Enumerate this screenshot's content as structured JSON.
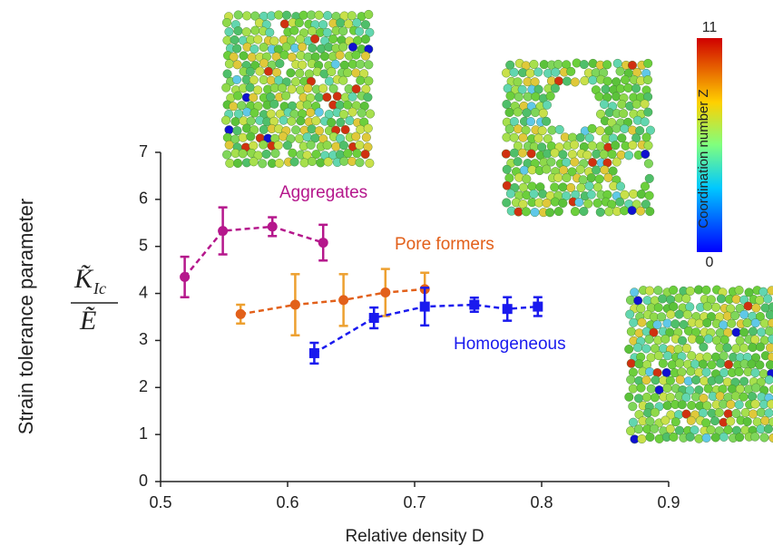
{
  "chart_data": {
    "type": "errorbar-line",
    "y_label": "Strain tolerance parameter",
    "y_formula": {
      "numerator": "K̃",
      "subscript": "Ic",
      "denominator": "Ẽ"
    },
    "x_label": "Relative density D",
    "xlim": [
      0.5,
      0.9
    ],
    "xticks": [
      0.5,
      0.6,
      0.7,
      0.8,
      0.9
    ],
    "ylim": [
      0,
      7
    ],
    "yticks": [
      0,
      1,
      2,
      3,
      4,
      5,
      6,
      7
    ],
    "series": [
      {
        "name": "Aggregates",
        "color": "#b5178c",
        "error_color": "#b5178c",
        "marker": "circle",
        "x": [
          0.519,
          0.549,
          0.588,
          0.628
        ],
        "values": [
          4.35,
          5.33,
          5.42,
          5.08
        ],
        "errors": [
          0.43,
          0.5,
          0.2,
          0.38
        ]
      },
      {
        "name": "Pore formers",
        "color": "#e2601a",
        "error_color": "#eda030",
        "marker": "circle",
        "x": [
          0.563,
          0.606,
          0.644,
          0.677,
          0.708
        ],
        "values": [
          3.56,
          3.76,
          3.86,
          4.02,
          4.09
        ],
        "errors": [
          0.2,
          0.65,
          0.55,
          0.5,
          0.35
        ]
      },
      {
        "name": "Homogeneous",
        "color": "#1a1aee",
        "error_color": "#1a1aee",
        "marker": "square",
        "x": [
          0.621,
          0.668,
          0.708,
          0.747,
          0.773,
          0.797
        ],
        "values": [
          2.73,
          3.48,
          3.72,
          3.76,
          3.67,
          3.72
        ],
        "errors": [
          0.22,
          0.22,
          0.4,
          0.15,
          0.25,
          0.2
        ]
      }
    ],
    "colorbar": {
      "label": "Coordination number Z",
      "min": 0,
      "max": 11
    }
  }
}
